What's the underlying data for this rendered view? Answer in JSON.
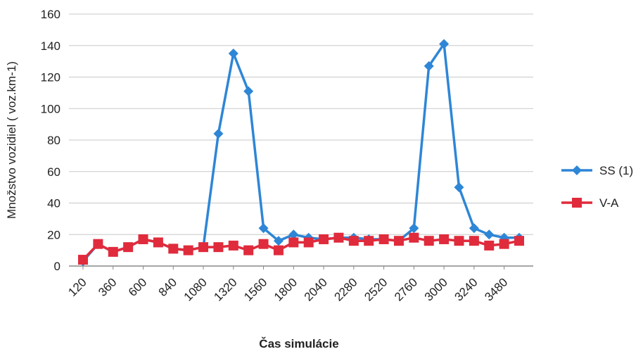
{
  "chart_data": {
    "type": "line",
    "title": "",
    "xlabel": "Čas simulácie",
    "ylabel": "Množstvo vozidiel ( voz.km-1)",
    "ylim": [
      0,
      160
    ],
    "yticks": [
      "0",
      "20",
      "40",
      "60",
      "80",
      "100",
      "120",
      "140",
      "160"
    ],
    "x": [
      120,
      240,
      360,
      480,
      600,
      720,
      840,
      960,
      1080,
      1200,
      1320,
      1440,
      1560,
      1680,
      1800,
      1920,
      2040,
      2160,
      2280,
      2400,
      2520,
      2640,
      2760,
      2880,
      3000,
      3120,
      3240,
      3360,
      3480,
      3600
    ],
    "xtick_labels": [
      "120",
      "360",
      "600",
      "840",
      "1080",
      "1320",
      "1560",
      "1800",
      "2040",
      "2280",
      "2520",
      "2760",
      "3000",
      "3240",
      "3480"
    ],
    "grid": true,
    "legend_position": "right",
    "series": [
      {
        "name": "SS (1)",
        "color": "#2e86d6",
        "marker": "diamond",
        "values": [
          3,
          14,
          9,
          12,
          17,
          15,
          11,
          10,
          12,
          84,
          135,
          111,
          24,
          16,
          20,
          18,
          17,
          18,
          18,
          17,
          17,
          16,
          24,
          127,
          141,
          50,
          24,
          20,
          18,
          18
        ]
      },
      {
        "name": "V-A",
        "color": "#e02b3c",
        "marker": "square",
        "values": [
          4,
          14,
          9,
          12,
          17,
          15,
          11,
          10,
          12,
          12,
          13,
          10,
          14,
          10,
          15,
          15,
          17,
          18,
          16,
          16,
          17,
          16,
          18,
          16,
          17,
          16,
          16,
          13,
          14,
          16
        ]
      }
    ]
  }
}
